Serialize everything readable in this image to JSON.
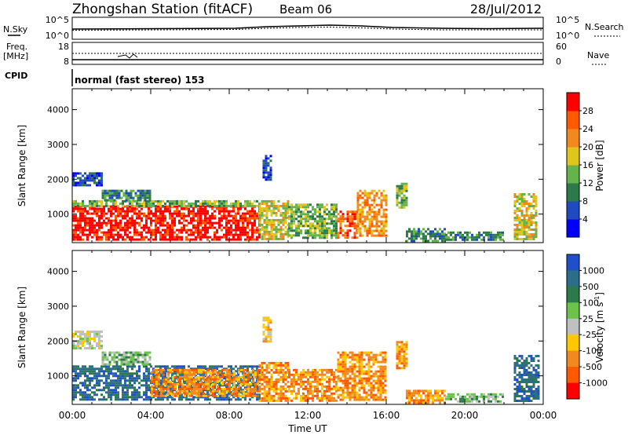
{
  "header": {
    "station": "Zhongshan Station (fitACF)",
    "beam": "Beam 06",
    "date": "28/Jul/2012"
  },
  "top_panels": {
    "nsky": {
      "label": "N.Sky",
      "ticks": [
        "10^5",
        "10^0"
      ]
    },
    "nsearch": {
      "label": "N.Search",
      "ticks": [
        "10^5",
        "10^0"
      ]
    },
    "freq": {
      "label_line1": "Freq.",
      "label_line2": "[MHz]",
      "ticks": [
        "18",
        "8"
      ]
    },
    "nave": {
      "label": "Nave",
      "ticks": [
        "60",
        "0"
      ]
    },
    "cpid": {
      "label": "CPID",
      "value": "normal (fast stereo) 153"
    }
  },
  "chart_data": [
    {
      "type": "heatmap",
      "name": "power",
      "ylabel": "Slant Range [km]",
      "xlabel": "",
      "ylim": [
        180,
        4600
      ],
      "xlim": [
        0,
        24
      ],
      "yticks": [
        "1000",
        "2000",
        "3000",
        "4000"
      ],
      "colorbar": {
        "label": "Power [dB]",
        "ticks": [
          "4",
          "8",
          "12",
          "16",
          "20",
          "24",
          "28"
        ],
        "colors": [
          "#0000ff",
          "#1e4bbf",
          "#2c7a4a",
          "#66b24c",
          "#e0c61a",
          "#f08a1e",
          "#ff5a00",
          "#ff0000"
        ]
      },
      "regions": [
        {
          "t": [
            0.0,
            9.5
          ],
          "r": [
            300,
            1250
          ],
          "level": 7
        },
        {
          "t": [
            0.0,
            9.5
          ],
          "r": [
            1250,
            1400
          ],
          "level": 3
        },
        {
          "t": [
            0.0,
            1.5
          ],
          "r": [
            1800,
            2200
          ],
          "level": 1
        },
        {
          "t": [
            1.5,
            4.0
          ],
          "r": [
            1400,
            1700
          ],
          "level": 2
        },
        {
          "t": [
            9.5,
            11.0
          ],
          "r": [
            300,
            1400
          ],
          "level": 4
        },
        {
          "t": [
            9.7,
            10.1
          ],
          "r": [
            2000,
            2700
          ],
          "level": 1
        },
        {
          "t": [
            11.0,
            13.5
          ],
          "r": [
            300,
            1300
          ],
          "level": 3
        },
        {
          "t": [
            13.5,
            14.5
          ],
          "r": [
            300,
            1100
          ],
          "level": 6
        },
        {
          "t": [
            14.5,
            16.0
          ],
          "r": [
            400,
            1700
          ],
          "level": 5
        },
        {
          "t": [
            16.5,
            17.0
          ],
          "r": [
            1200,
            1900
          ],
          "level": 3
        },
        {
          "t": [
            17.0,
            19.0
          ],
          "r": [
            250,
            600
          ],
          "level": 2
        },
        {
          "t": [
            19.0,
            22.0
          ],
          "r": [
            250,
            500
          ],
          "level": 2
        },
        {
          "t": [
            22.5,
            23.7
          ],
          "r": [
            300,
            1600
          ],
          "level": 4
        }
      ]
    },
    {
      "type": "heatmap",
      "name": "velocity",
      "ylabel": "Slant Range [km]",
      "xlabel": "Time UT",
      "ylim": [
        180,
        4600
      ],
      "xlim": [
        0,
        24
      ],
      "xticks": [
        "00:00",
        "04:00",
        "08:00",
        "12:00",
        "16:00",
        "20:00",
        "00:00"
      ],
      "yticks": [
        "1000",
        "2000",
        "3000",
        "4000"
      ],
      "colorbar": {
        "label": "Velocity [m s",
        "label_sup": "-1",
        "label_end": "]",
        "ticks": [
          "1000",
          "500",
          "100",
          "25",
          "-25",
          "-100",
          "-500",
          "-1000"
        ],
        "colors": [
          "#2050c8",
          "#2c6e8a",
          "#2c7a4a",
          "#6cc24a",
          "#c0c0c0",
          "#ffc800",
          "#f08a1e",
          "#ff5a00",
          "#ff0000"
        ]
      },
      "regions": [
        {
          "t": [
            0.0,
            9.5
          ],
          "r": [
            300,
            1300
          ],
          "level": 1
        },
        {
          "t": [
            0.0,
            1.5
          ],
          "r": [
            1800,
            2300
          ],
          "level": 4
        },
        {
          "t": [
            1.5,
            4.0
          ],
          "r": [
            1300,
            1700
          ],
          "level": 3
        },
        {
          "t": [
            4.0,
            9.5
          ],
          "r": [
            400,
            1200
          ],
          "level": 6
        },
        {
          "t": [
            9.5,
            11.0
          ],
          "r": [
            300,
            1400
          ],
          "level": 6
        },
        {
          "t": [
            9.7,
            10.1
          ],
          "r": [
            2000,
            2700
          ],
          "level": 5
        },
        {
          "t": [
            11.0,
            13.5
          ],
          "r": [
            300,
            1200
          ],
          "level": 6
        },
        {
          "t": [
            13.5,
            16.0
          ],
          "r": [
            300,
            1700
          ],
          "level": 6
        },
        {
          "t": [
            16.5,
            17.0
          ],
          "r": [
            1200,
            2000
          ],
          "level": 6
        },
        {
          "t": [
            17.0,
            19.0
          ],
          "r": [
            200,
            600
          ],
          "level": 6
        },
        {
          "t": [
            19.0,
            22.0
          ],
          "r": [
            250,
            500
          ],
          "level": 3
        },
        {
          "t": [
            22.5,
            23.8
          ],
          "r": [
            300,
            1600
          ],
          "level": 1
        }
      ]
    }
  ]
}
